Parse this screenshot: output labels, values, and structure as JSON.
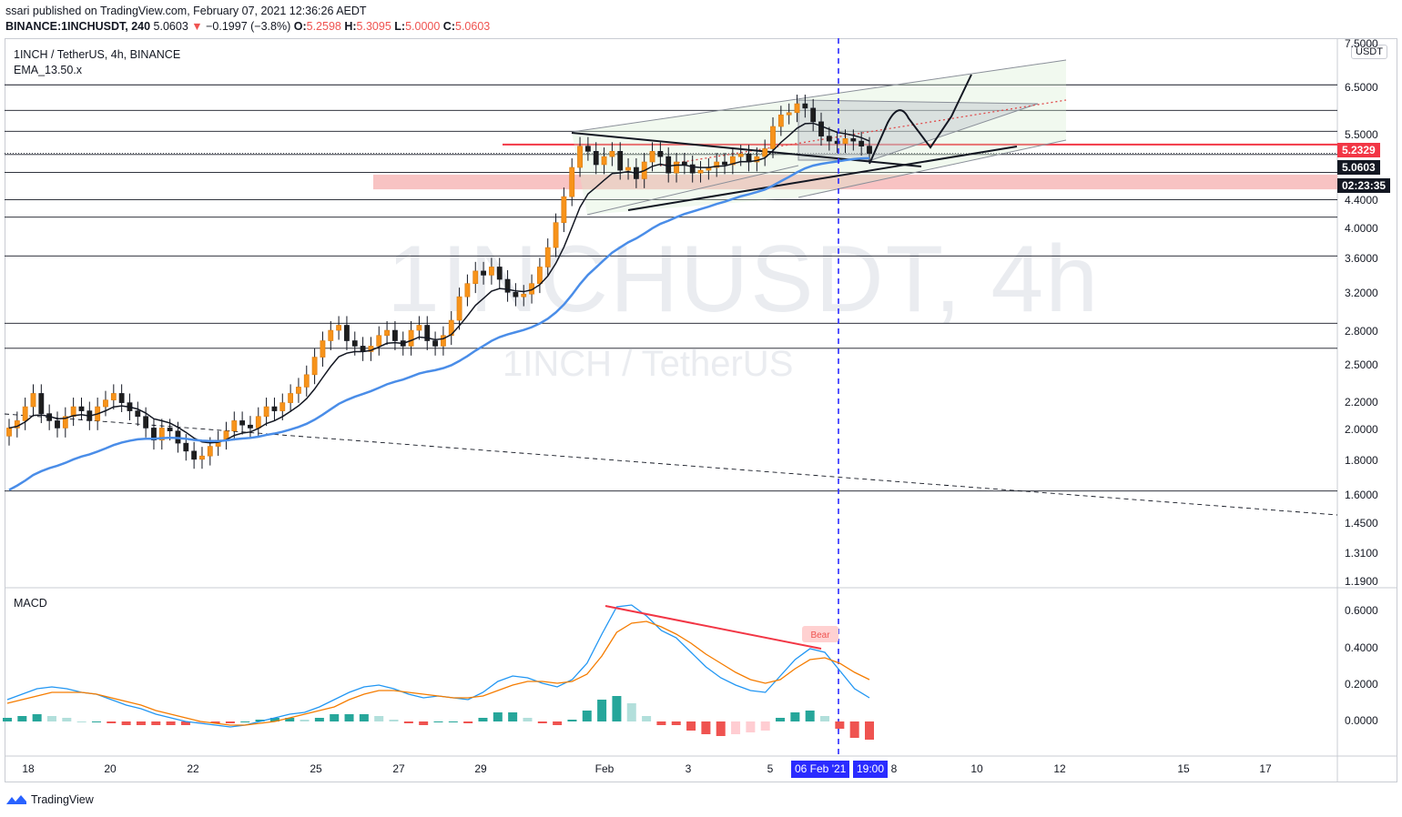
{
  "header": {
    "published": "ssari published on TradingView.com, February 07, 2021 12:36:26 AEDT",
    "symbol": "BINANCE:1INCHUSDT, 240",
    "last": "5.0603",
    "arrow": "▼",
    "change": "−0.1997 (−3.8%)",
    "o_label": "O:",
    "o_value": "5.2598",
    "h_label": "H:",
    "h_value": "5.3095",
    "l_label": "L:",
    "l_value": "5.0000",
    "c_label": "C:",
    "c_value": "5.0603"
  },
  "legend": {
    "pair": "1INCH / TetherUS, 4h, BINANCE",
    "ema": "EMA_13.50.x",
    "macd": "MACD"
  },
  "watermark": {
    "big": "1INCHUSDT, 4h",
    "small": "1INCH / TetherUS"
  },
  "currency": "USDT",
  "price_tags": {
    "red_line": "5.2329",
    "last": "5.0603",
    "countdown": "02:23:35"
  },
  "price_axis": [
    "7.5000",
    "6.5000",
    "5.5000",
    "4.4000",
    "4.0000",
    "3.6000",
    "3.2000",
    "2.8000",
    "2.5000",
    "2.2000",
    "2.0000",
    "1.8000",
    "1.6000",
    "1.4500",
    "1.3100",
    "1.1900"
  ],
  "macd_axis": [
    "0.6000",
    "0.4000",
    "0.2000",
    "0.0000"
  ],
  "time_axis": [
    "18",
    "20",
    "22",
    "25",
    "27",
    "29",
    "Feb",
    "3",
    "5",
    "8",
    "10",
    "12",
    "15",
    "17"
  ],
  "crosshair_date": "06 Feb '21",
  "crosshair_time": "19:00",
  "bear_label": "Bear",
  "footer": {
    "brand": "TradingView"
  },
  "colors": {
    "up": "#f7931a",
    "down": "#1e1e1e",
    "ema_fast": "#131722",
    "ema_slow": "#4a8de8",
    "macd": "#2196f3",
    "signal": "#f57c00",
    "hist_pos_strong": "#26a69a",
    "hist_pos_weak": "#b2dfdb",
    "hist_neg_strong": "#ef5350",
    "hist_neg_weak": "#ffcdd2",
    "accent_red": "#f23645",
    "crosshair": "#2a2bff"
  },
  "chart_data": [
    {
      "type": "candlestick",
      "title": "1INCH / TetherUS, 4h, BINANCE",
      "scale": "log",
      "ylim": [
        1.12,
        7.6
      ],
      "x_ticks": [
        "18",
        "20",
        "22",
        "25",
        "27",
        "29",
        "Feb",
        "3",
        "5",
        "8",
        "10",
        "12",
        "15",
        "17"
      ],
      "series": [
        {
          "name": "EMA_13.50.x",
          "kind": "ema_fast"
        },
        {
          "name": "EMA_13.50.x",
          "kind": "ema_slow"
        }
      ],
      "horizontal_levels": [
        6.55,
        5.95,
        5.5,
        5.04,
        4.71,
        4.25,
        3.98,
        3.44,
        2.67,
        2.43,
        1.42
      ],
      "resistance_level": 5.2329,
      "support_zone": [
        4.42,
        4.67
      ],
      "last_price": 5.0603
    },
    {
      "type": "line",
      "title": "MACD",
      "ylim": [
        -0.19,
        0.72
      ],
      "series": [
        {
          "name": "MACD",
          "values": [
            0.12,
            0.15,
            0.18,
            0.19,
            0.18,
            0.16,
            0.15,
            0.12,
            0.09,
            0.07,
            0.04,
            0.02,
            0.0,
            -0.01,
            -0.02,
            -0.03,
            -0.02,
            0.0,
            0.02,
            0.04,
            0.05,
            0.08,
            0.12,
            0.16,
            0.19,
            0.2,
            0.18,
            0.15,
            0.13,
            0.14,
            0.13,
            0.12,
            0.16,
            0.22,
            0.25,
            0.24,
            0.21,
            0.19,
            0.23,
            0.32,
            0.48,
            0.63,
            0.64,
            0.58,
            0.5,
            0.46,
            0.38,
            0.3,
            0.24,
            0.2,
            0.17,
            0.16,
            0.25,
            0.34,
            0.4,
            0.38,
            0.28,
            0.18,
            0.13
          ]
        },
        {
          "name": "Signal",
          "values": [
            0.1,
            0.12,
            0.14,
            0.16,
            0.16,
            0.16,
            0.15,
            0.13,
            0.11,
            0.09,
            0.06,
            0.04,
            0.02,
            0.0,
            -0.01,
            -0.02,
            -0.02,
            -0.01,
            0.0,
            0.02,
            0.04,
            0.06,
            0.08,
            0.12,
            0.15,
            0.17,
            0.17,
            0.16,
            0.15,
            0.14,
            0.13,
            0.13,
            0.14,
            0.17,
            0.2,
            0.22,
            0.22,
            0.21,
            0.22,
            0.26,
            0.36,
            0.49,
            0.54,
            0.55,
            0.52,
            0.48,
            0.43,
            0.37,
            0.32,
            0.27,
            0.23,
            0.21,
            0.23,
            0.29,
            0.34,
            0.35,
            0.32,
            0.27,
            0.23
          ]
        },
        {
          "name": "Histogram",
          "values": [
            0.02,
            0.03,
            0.04,
            0.03,
            0.02,
            0.0,
            0.0,
            -0.01,
            -0.02,
            -0.02,
            -0.02,
            -0.02,
            -0.02,
            -0.01,
            -0.01,
            -0.01,
            0.0,
            0.01,
            0.02,
            0.02,
            0.01,
            0.02,
            0.04,
            0.04,
            0.04,
            0.03,
            0.01,
            -0.01,
            -0.02,
            0.0,
            0.0,
            -0.01,
            0.02,
            0.05,
            0.05,
            0.02,
            -0.01,
            -0.02,
            0.01,
            0.06,
            0.12,
            0.14,
            0.1,
            0.03,
            -0.02,
            -0.02,
            -0.05,
            -0.07,
            -0.08,
            -0.07,
            -0.06,
            -0.05,
            0.02,
            0.05,
            0.06,
            0.03,
            -0.04,
            -0.09,
            -0.1
          ]
        }
      ],
      "annotation": "Bear"
    }
  ]
}
